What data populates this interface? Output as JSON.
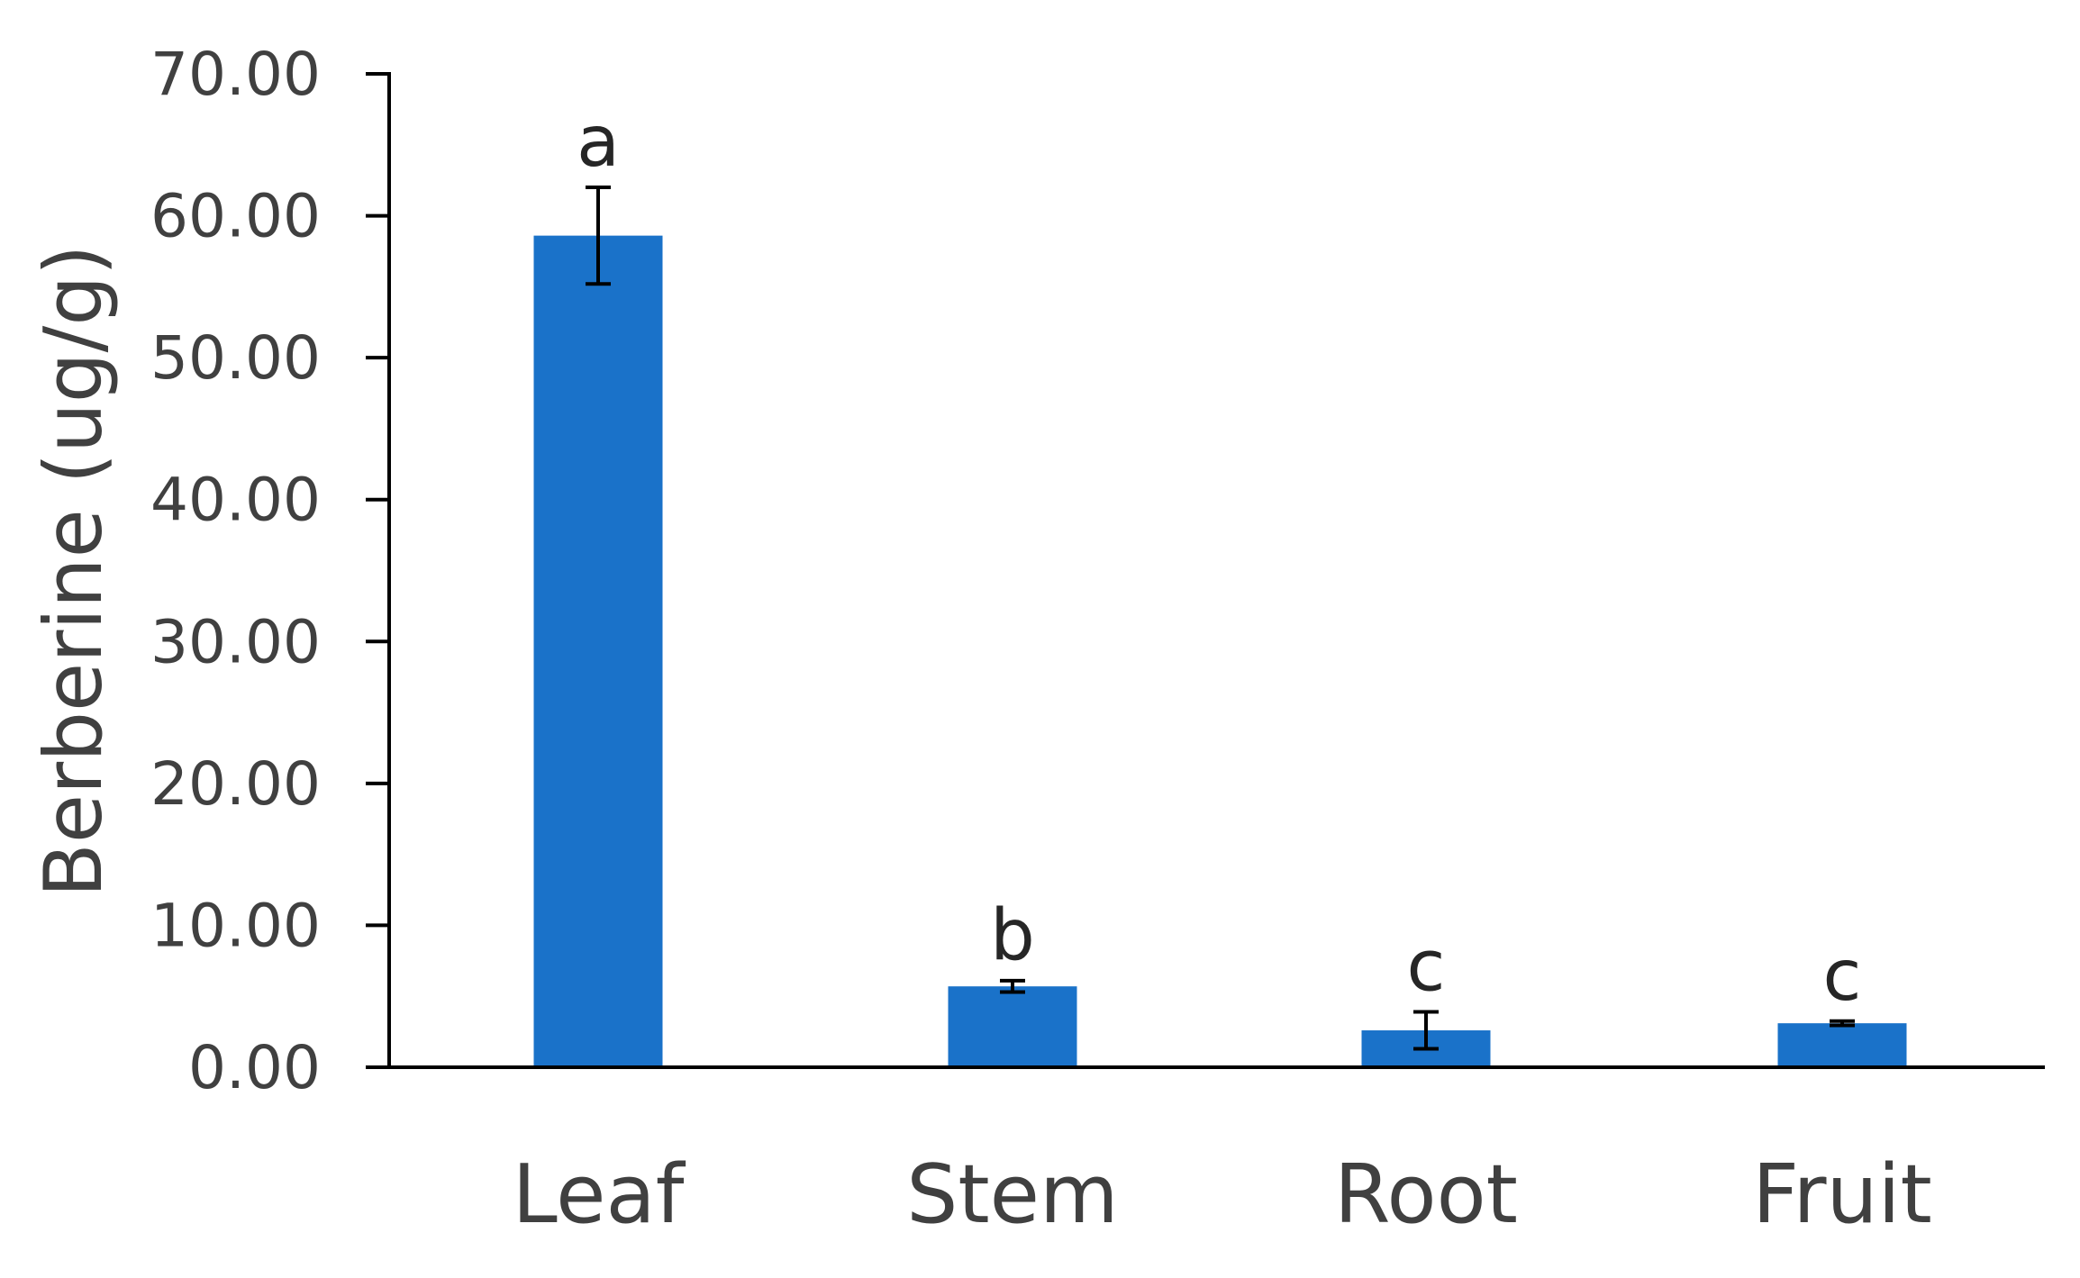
{
  "chart_data": {
    "type": "bar",
    "title": "",
    "xlabel": "",
    "ylabel": "Berberine (ug/g)",
    "categories": [
      "Leaf",
      "Stem",
      "Root",
      "Fruit"
    ],
    "series": [
      {
        "values": [
          58.6,
          5.7,
          2.6,
          3.1
        ],
        "error": [
          3.4,
          0.4,
          1.3,
          0.15
        ],
        "significance": [
          "a",
          "b",
          "c",
          "c"
        ]
      }
    ],
    "ylim": [
      0,
      70
    ],
    "yticks": [
      "0.00",
      "10.00",
      "20.00",
      "30.00",
      "40.00",
      "50.00",
      "60.00",
      "70.00"
    ],
    "ytick_values": [
      0,
      10,
      20,
      30,
      40,
      50,
      60,
      70
    ],
    "grid": false,
    "legend": "none",
    "colors": {
      "bar": "#1a72c9",
      "axis": "#000000",
      "error_bar": "#000000",
      "text": "#404040"
    }
  }
}
